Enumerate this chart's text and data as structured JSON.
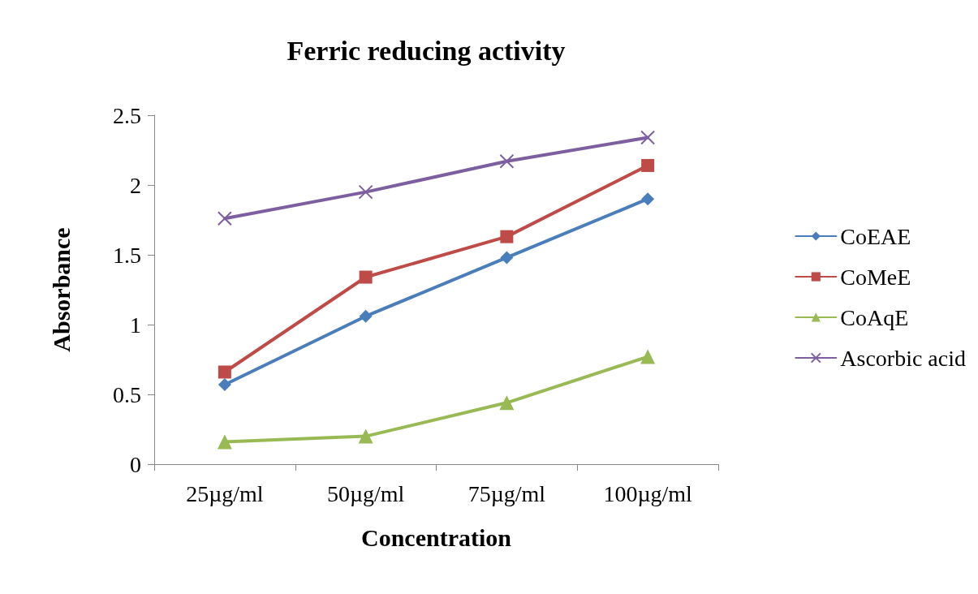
{
  "chart_data": {
    "type": "line",
    "title": "Ferric reducing activity",
    "xlabel": "Concentration",
    "ylabel": "Absorbance",
    "categories": [
      "25µg/ml",
      "50µg/ml",
      "75µg/ml",
      "100µg/ml"
    ],
    "series": [
      {
        "name": "CoEAE",
        "color": "#4a7ebb",
        "marker": "diamond",
        "values": [
          0.57,
          1.06,
          1.48,
          1.9
        ]
      },
      {
        "name": "CoMeE",
        "color": "#be4b48",
        "marker": "square",
        "values": [
          0.66,
          1.34,
          1.63,
          2.14
        ]
      },
      {
        "name": "CoAqE",
        "color": "#98b954",
        "marker": "triangle",
        "values": [
          0.16,
          0.2,
          0.44,
          0.77
        ]
      },
      {
        "name": "Ascorbic acid",
        "color": "#7d5fa0",
        "marker": "cross",
        "values": [
          1.76,
          1.95,
          2.17,
          2.34
        ]
      }
    ],
    "ylim": [
      0,
      2.5
    ],
    "yticks": [
      0,
      0.5,
      1,
      1.5,
      2,
      2.5
    ],
    "grid": false,
    "legend": "right",
    "line_style": "solid"
  }
}
